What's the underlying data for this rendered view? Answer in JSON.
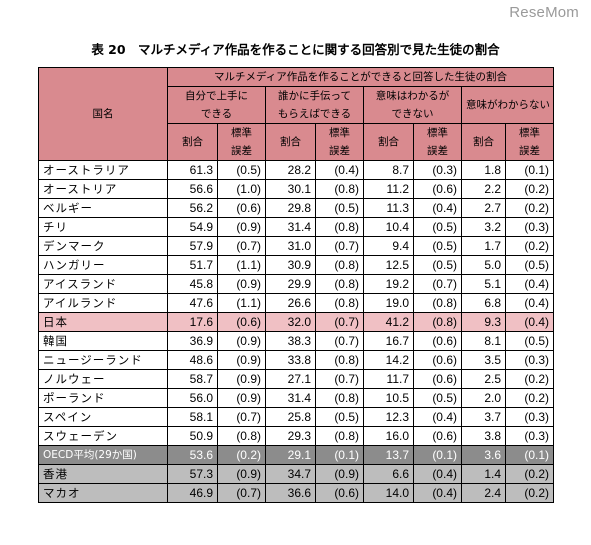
{
  "watermark": "ReseMom",
  "title": "表 20　マルチメディア作品を作ることに関する回答別で見た生徒の割合",
  "header": {
    "country_label": "国名",
    "group_label": "マルチメディア作品を作ることができると回答した生徒の割合",
    "categories": [
      {
        "line1": "自分で上手に",
        "line2": "できる"
      },
      {
        "line1": "誰かに手伝って",
        "line2": "もらえばできる"
      },
      {
        "line1": "意味はわかるが",
        "line2": "できない"
      },
      {
        "line1": "意味がわからない",
        "line2": ""
      }
    ],
    "pct_label": "割合",
    "se_label_line1": "標準",
    "se_label_line2": "誤差"
  },
  "rows": [
    {
      "name": "オーストラリア",
      "v": [
        "61.3",
        "(0.5)",
        "28.2",
        "(0.4)",
        "8.7",
        "(0.3)",
        "1.8",
        "(0.1)"
      ]
    },
    {
      "name": "オーストリア",
      "v": [
        "56.6",
        "(1.0)",
        "30.1",
        "(0.8)",
        "11.2",
        "(0.6)",
        "2.2",
        "(0.2)"
      ]
    },
    {
      "name": "ベルギー",
      "v": [
        "56.2",
        "(0.6)",
        "29.8",
        "(0.5)",
        "11.3",
        "(0.4)",
        "2.7",
        "(0.2)"
      ]
    },
    {
      "name": "チリ",
      "v": [
        "54.9",
        "(0.9)",
        "31.4",
        "(0.8)",
        "10.4",
        "(0.5)",
        "3.2",
        "(0.3)"
      ]
    },
    {
      "name": "デンマーク",
      "v": [
        "57.9",
        "(0.7)",
        "31.0",
        "(0.7)",
        "9.4",
        "(0.5)",
        "1.7",
        "(0.2)"
      ]
    },
    {
      "name": "ハンガリー",
      "v": [
        "51.7",
        "(1.1)",
        "30.9",
        "(0.8)",
        "12.5",
        "(0.5)",
        "5.0",
        "(0.5)"
      ]
    },
    {
      "name": "アイスランド",
      "v": [
        "45.8",
        "(0.9)",
        "29.9",
        "(0.8)",
        "19.2",
        "(0.7)",
        "5.1",
        "(0.4)"
      ]
    },
    {
      "name": "アイルランド",
      "v": [
        "47.6",
        "(1.1)",
        "26.6",
        "(0.8)",
        "19.0",
        "(0.8)",
        "6.8",
        "(0.4)"
      ]
    },
    {
      "name": "日本",
      "v": [
        "17.6",
        "(0.6)",
        "32.0",
        "(0.7)",
        "41.2",
        "(0.8)",
        "9.3",
        "(0.4)"
      ],
      "style": "japan"
    },
    {
      "name": "韓国",
      "v": [
        "36.9",
        "(0.9)",
        "38.3",
        "(0.7)",
        "16.7",
        "(0.6)",
        "8.1",
        "(0.5)"
      ]
    },
    {
      "name": "ニュージーランド",
      "v": [
        "48.6",
        "(0.9)",
        "33.8",
        "(0.8)",
        "14.2",
        "(0.6)",
        "3.5",
        "(0.3)"
      ]
    },
    {
      "name": "ノルウェー",
      "v": [
        "58.7",
        "(0.9)",
        "27.1",
        "(0.7)",
        "11.7",
        "(0.6)",
        "2.5",
        "(0.2)"
      ]
    },
    {
      "name": "ポーランド",
      "v": [
        "56.0",
        "(0.9)",
        "31.4",
        "(0.8)",
        "10.5",
        "(0.5)",
        "2.0",
        "(0.2)"
      ]
    },
    {
      "name": "スペイン",
      "v": [
        "58.1",
        "(0.7)",
        "25.8",
        "(0.5)",
        "12.3",
        "(0.4)",
        "3.7",
        "(0.3)"
      ]
    },
    {
      "name": "スウェーデン",
      "v": [
        "50.9",
        "(0.8)",
        "29.3",
        "(0.8)",
        "16.0",
        "(0.6)",
        "3.8",
        "(0.3)"
      ]
    },
    {
      "name": "OECD平均(29か国)",
      "v": [
        "53.6",
        "(0.2)",
        "29.1",
        "(0.1)",
        "13.7",
        "(0.1)",
        "3.6",
        "(0.1)"
      ],
      "style": "oecd"
    },
    {
      "name": "香港",
      "v": [
        "57.3",
        "(0.9)",
        "34.7",
        "(0.9)",
        "6.6",
        "(0.4)",
        "1.4",
        "(0.2)"
      ],
      "style": "gray"
    },
    {
      "name": "マカオ",
      "v": [
        "46.9",
        "(0.7)",
        "36.6",
        "(0.6)",
        "14.0",
        "(0.4)",
        "2.4",
        "(0.2)"
      ],
      "style": "gray"
    }
  ],
  "colors": {
    "header_bg": "#d98a8f",
    "japan_bg": "#f0c0c4",
    "oecd_bg": "#8c8c8c",
    "gray_bg": "#bdbdbd"
  }
}
